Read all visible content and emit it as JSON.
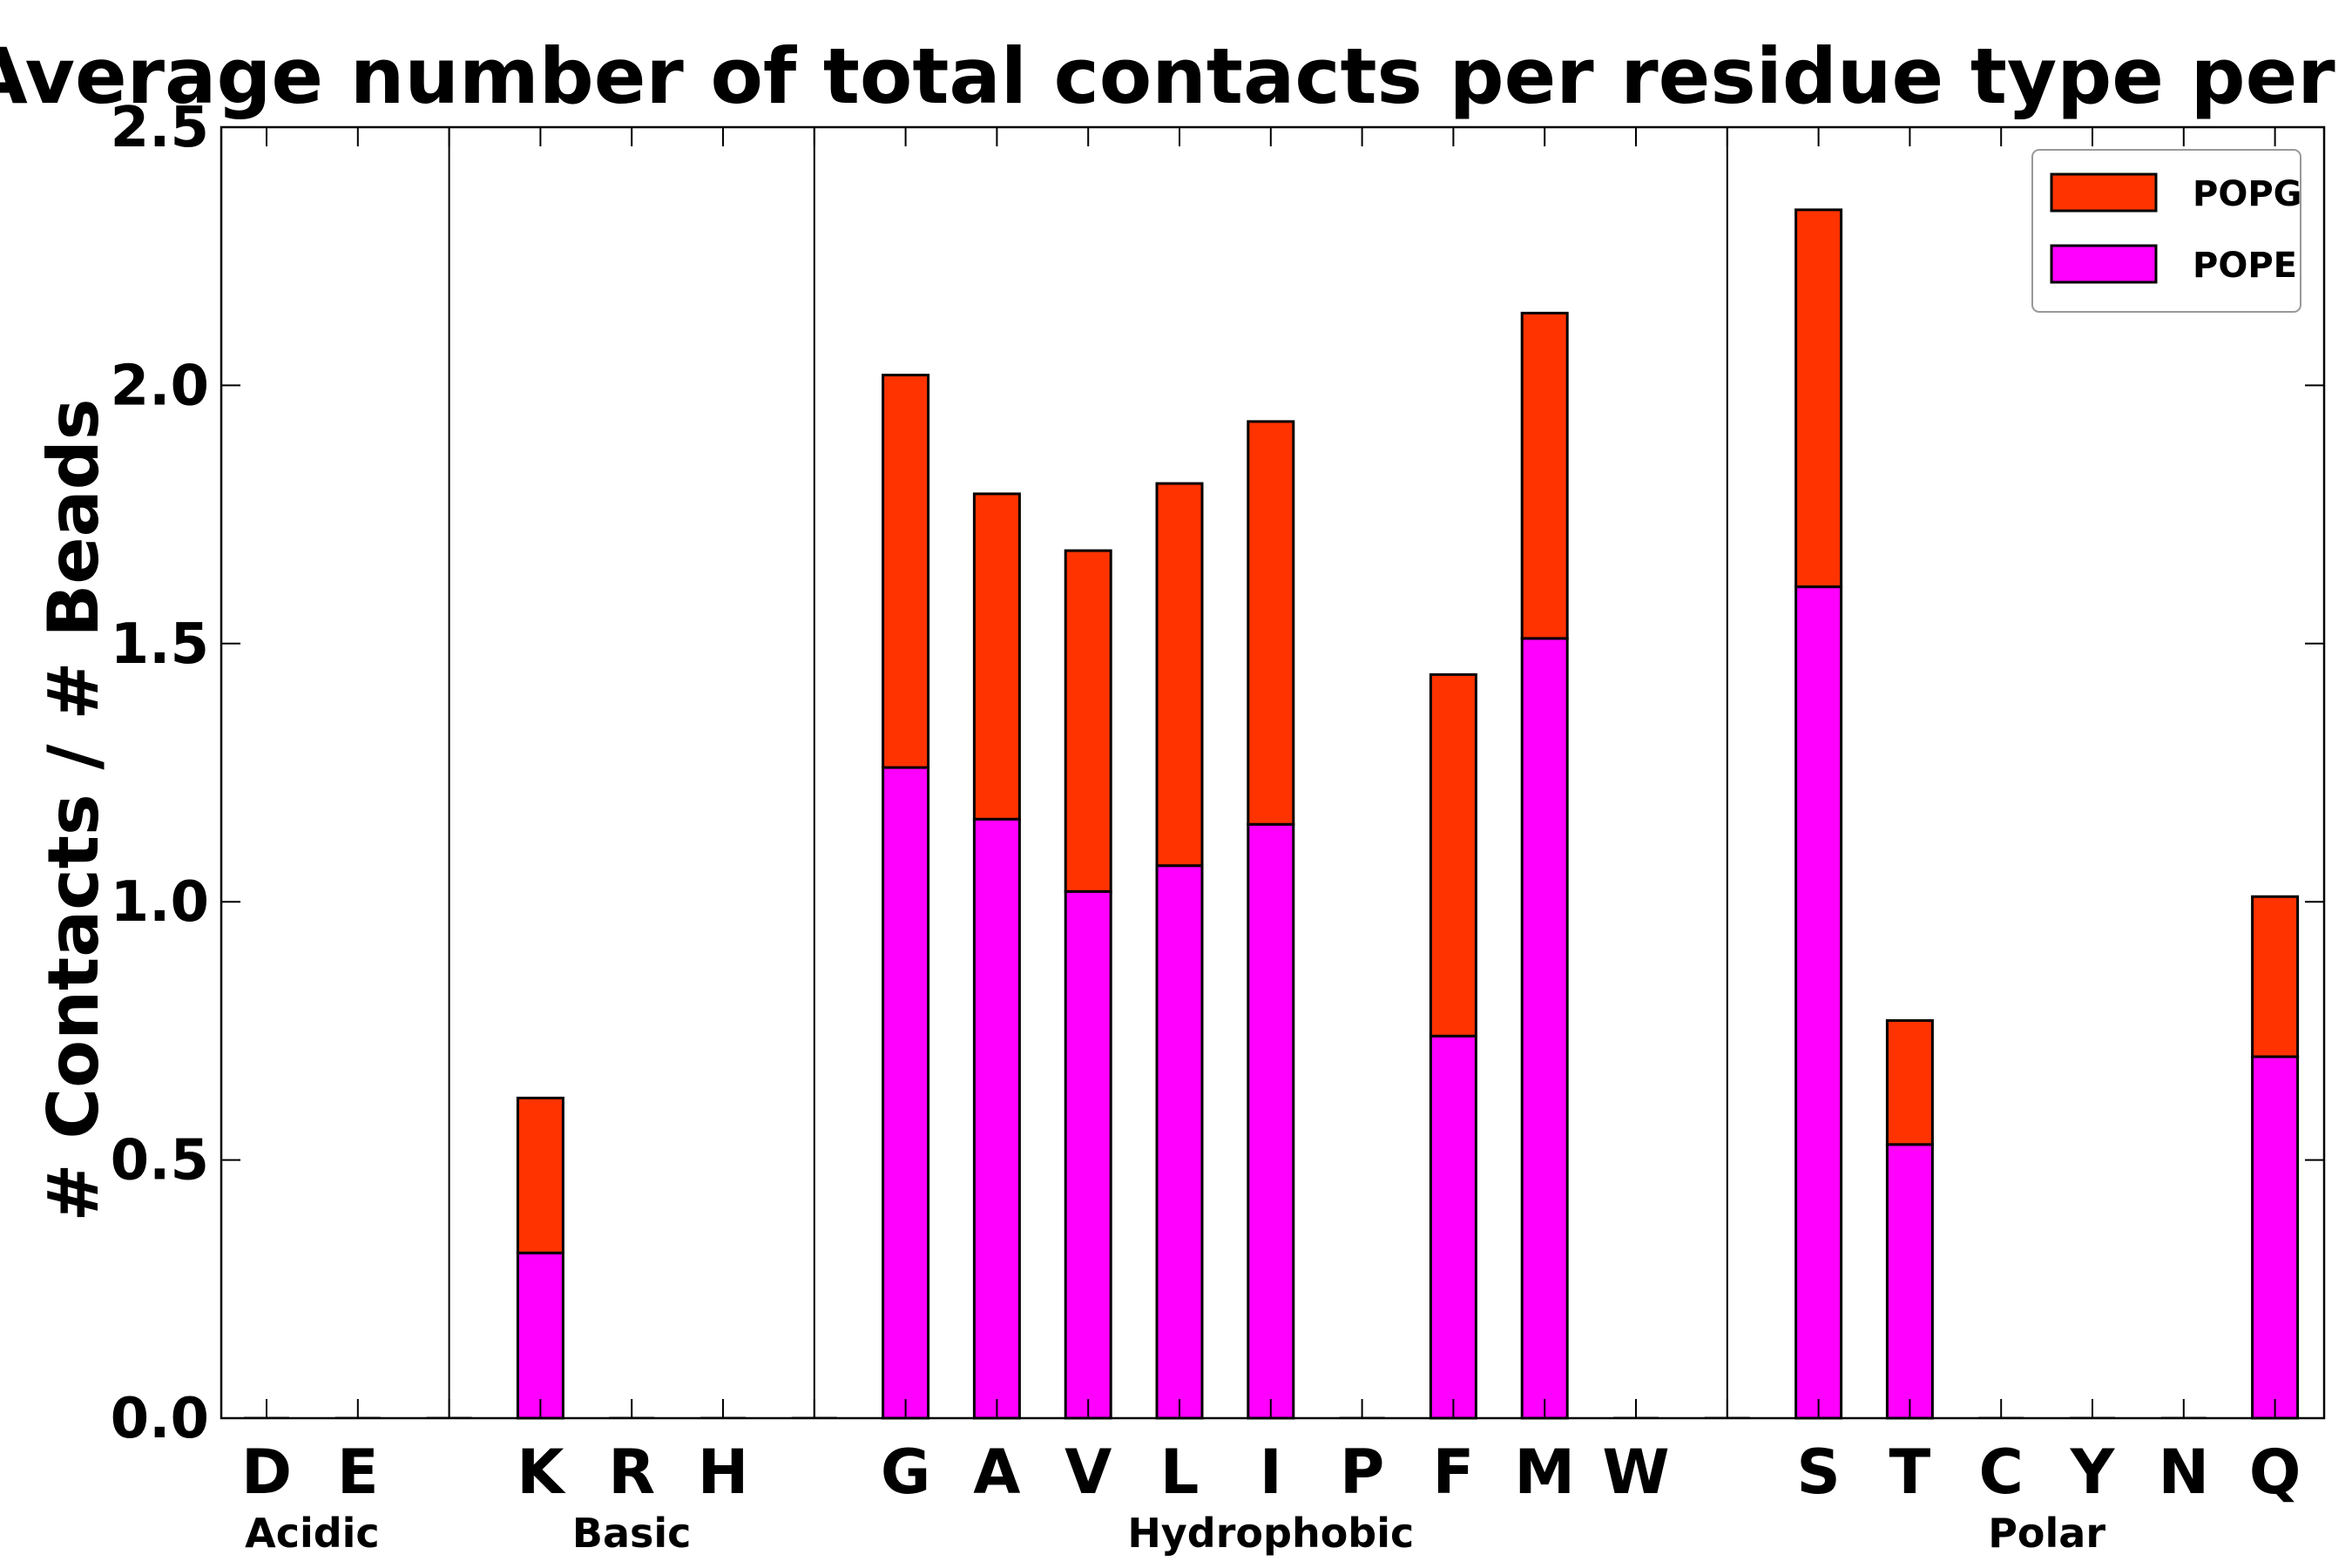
{
  "chart_data": {
    "type": "bar",
    "stacked": true,
    "title": "Average number of total contacts per residue type per bead",
    "xlabel": "",
    "ylabel": "# Contacts / # Beads",
    "ylim": [
      0,
      2.5
    ],
    "yticks": [
      "0.0",
      "0.5",
      "1.0",
      "1.5",
      "2.0",
      "2.5"
    ],
    "categories": [
      "D",
      "E",
      "",
      "K",
      "R",
      "H",
      "",
      "G",
      "A",
      "V",
      "L",
      "I",
      "P",
      "F",
      "M",
      "W",
      "",
      "S",
      "T",
      "C",
      "Y",
      "N",
      "Q"
    ],
    "series": [
      {
        "name": "POPE",
        "color": "#ff00ff",
        "values": [
          0,
          0,
          0,
          0.32,
          0,
          0,
          0,
          1.26,
          1.16,
          1.02,
          1.07,
          1.15,
          0,
          0.74,
          1.51,
          0,
          0,
          1.61,
          0.53,
          0,
          0,
          0,
          0.7
        ]
      },
      {
        "name": "POPG",
        "color": "#ff3300",
        "values": [
          0,
          0,
          0,
          0.3,
          0,
          0,
          0,
          0.76,
          0.63,
          0.66,
          0.74,
          0.78,
          0,
          0.7,
          0.63,
          0,
          0,
          0.73,
          0.24,
          0,
          0,
          0,
          0.31
        ]
      }
    ],
    "groups": [
      {
        "label": "Acidic",
        "start": 0,
        "end": 1
      },
      {
        "label": "Basic",
        "start": 3,
        "end": 5
      },
      {
        "label": "Hydrophobic",
        "start": 7,
        "end": 15
      },
      {
        "label": "Polar",
        "start": 17,
        "end": 22
      }
    ],
    "separators_after": [
      2,
      6,
      16
    ],
    "legend": {
      "position": "top-right",
      "entries": [
        "POPG",
        "POPE"
      ]
    }
  }
}
